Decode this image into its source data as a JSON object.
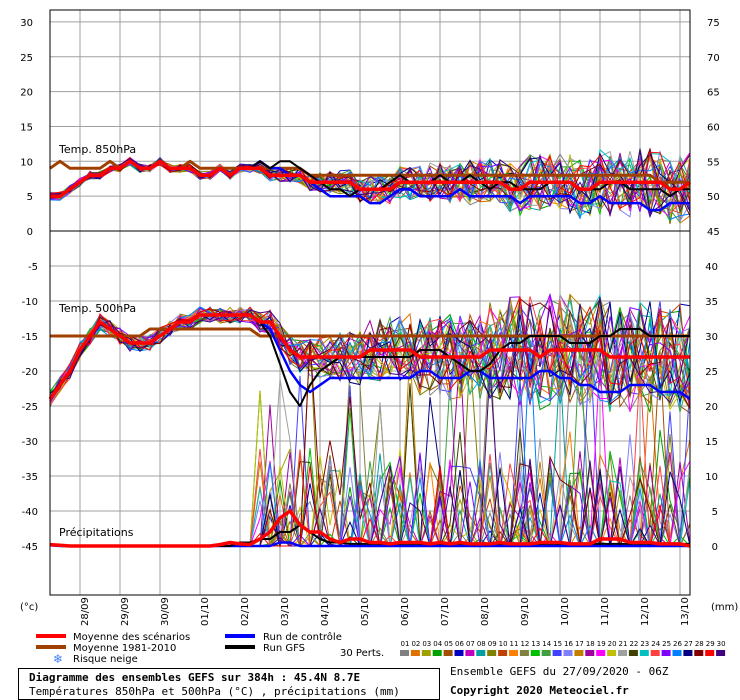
{
  "chart_data": {
    "type": "line",
    "left_unit": "(°c)",
    "right_unit": "(mm)",
    "left_ticks_top": [
      "30",
      "25",
      "20",
      "15",
      "10",
      "5",
      "0"
    ],
    "right_ticks_top": [
      "75",
      "70",
      "65",
      "60",
      "55",
      "50",
      "45"
    ],
    "left_ticks_bottom": [
      "-5",
      "-10",
      "-15",
      "-20",
      "-25",
      "-30",
      "-35",
      "-40",
      "-45"
    ],
    "right_ticks_bottom": [
      "40",
      "35",
      "30",
      "25",
      "20",
      "15",
      "10",
      "5",
      "0"
    ],
    "dates": [
      "28/09",
      "29/09",
      "30/09",
      "01/10",
      "02/10",
      "03/10",
      "04/10",
      "05/10",
      "06/10",
      "07/10",
      "08/10",
      "09/10",
      "10/10",
      "11/10",
      "12/10",
      "13/10"
    ],
    "panel_labels": {
      "t850": "Temp. 850hPa",
      "t500": "Temp. 500hPa",
      "precip": "Précipitations"
    },
    "t850": {
      "mean": [
        5,
        5,
        6,
        7,
        8,
        8,
        9,
        9,
        10,
        9,
        9,
        10,
        9,
        9,
        9,
        8,
        8,
        9,
        8,
        9,
        9,
        9,
        8,
        8,
        8,
        8,
        7,
        7,
        7,
        7,
        7,
        6,
        6,
        6,
        6,
        7,
        7,
        7,
        7,
        7,
        7,
        7,
        7,
        7,
        7,
        7,
        6,
        6,
        7,
        7,
        7,
        7,
        7,
        6,
        6,
        7,
        7,
        7,
        7,
        7,
        7,
        7,
        6,
        6,
        7
      ],
      "control": [
        5,
        5,
        6,
        7,
        8,
        8,
        9,
        9,
        10,
        9,
        9,
        10,
        9,
        9,
        9,
        8,
        8,
        9,
        8,
        9,
        9,
        10,
        9,
        9,
        8,
        8,
        7,
        6,
        5,
        5,
        5,
        5,
        4,
        4,
        5,
        6,
        6,
        5,
        5,
        5,
        5,
        6,
        5,
        5,
        5,
        5,
        5,
        4,
        5,
        5,
        5,
        5,
        5,
        4,
        4,
        5,
        4,
        4,
        4,
        4,
        3,
        3,
        4,
        4,
        4
      ],
      "gfs": [
        5,
        5,
        6,
        7,
        8,
        8,
        9,
        9,
        10,
        9,
        9,
        10,
        9,
        9,
        9,
        8,
        8,
        9,
        8,
        9,
        9,
        10,
        9,
        10,
        10,
        9,
        8,
        7,
        6,
        6,
        5,
        6,
        6,
        6,
        7,
        8,
        7,
        7,
        7,
        8,
        7,
        7,
        8,
        7,
        6,
        7,
        7,
        6,
        6,
        6,
        7,
        7,
        7,
        6,
        6,
        6,
        7,
        7,
        6,
        6,
        6,
        6,
        5,
        6,
        6
      ],
      "clim": [
        9,
        10,
        9,
        9,
        9,
        9,
        10,
        9,
        10,
        9,
        9,
        10,
        9,
        9,
        10,
        9,
        9,
        9,
        9,
        9,
        9,
        9,
        9,
        9,
        9,
        9,
        8,
        8,
        8,
        8,
        8,
        8,
        8,
        8,
        8,
        8,
        8,
        8,
        8,
        8,
        8,
        8,
        8,
        8,
        8,
        8,
        8,
        8,
        8,
        8,
        8,
        8,
        8,
        8,
        8,
        8,
        8,
        8,
        8,
        8,
        8,
        7,
        7,
        7,
        7
      ]
    },
    "t500": {
      "mean": [
        -24,
        -22,
        -20,
        -17,
        -15,
        -13,
        -14,
        -15,
        -16,
        -16,
        -16,
        -15,
        -14,
        -13,
        -13,
        -12,
        -12,
        -12,
        -12,
        -12,
        -12,
        -13,
        -13,
        -15,
        -17,
        -18,
        -18,
        -18,
        -18,
        -18,
        -18,
        -18,
        -17,
        -17,
        -17,
        -17,
        -17,
        -18,
        -18,
        -18,
        -18,
        -18,
        -18,
        -18,
        -17,
        -17,
        -17,
        -17,
        -17,
        -18,
        -17,
        -17,
        -17,
        -17,
        -17,
        -17,
        -18,
        -18,
        -18,
        -18,
        -18,
        -18,
        -18,
        -18,
        -18
      ],
      "control": [
        -24,
        -22,
        -20,
        -17,
        -15,
        -13,
        -14,
        -15,
        -16,
        -16,
        -16,
        -15,
        -14,
        -13,
        -13,
        -12,
        -12,
        -12,
        -12,
        -12,
        -12,
        -13,
        -14,
        -17,
        -20,
        -22,
        -23,
        -22,
        -21,
        -21,
        -21,
        -21,
        -21,
        -21,
        -21,
        -21,
        -21,
        -20,
        -20,
        -21,
        -21,
        -21,
        -20,
        -20,
        -21,
        -21,
        -21,
        -21,
        -21,
        -20,
        -20,
        -21,
        -21,
        -22,
        -22,
        -23,
        -23,
        -23,
        -22,
        -22,
        -22,
        -23,
        -23,
        -23,
        -24
      ],
      "gfs": [
        -24,
        -22,
        -20,
        -17,
        -15,
        -13,
        -14,
        -15,
        -16,
        -16,
        -16,
        -15,
        -14,
        -13,
        -13,
        -12,
        -12,
        -12,
        -12,
        -12,
        -12,
        -13,
        -15,
        -19,
        -23,
        -25,
        -22,
        -20,
        -19,
        -18,
        -18,
        -18,
        -18,
        -18,
        -18,
        -18,
        -18,
        -17,
        -17,
        -17,
        -18,
        -19,
        -20,
        -20,
        -19,
        -17,
        -16,
        -16,
        -15,
        -15,
        -15,
        -15,
        -16,
        -16,
        -16,
        -15,
        -15,
        -14,
        -14,
        -14,
        -15,
        -15,
        -15,
        -15,
        -15
      ],
      "clim": [
        -15,
        -15,
        -15,
        -15,
        -15,
        -15,
        -15,
        -15,
        -15,
        -15,
        -14,
        -14,
        -14,
        -14,
        -14,
        -14,
        -14,
        -14,
        -14,
        -14,
        -14,
        -15,
        -15,
        -15,
        -15,
        -15,
        -15,
        -15,
        -15,
        -15,
        -15,
        -15,
        -15,
        -15,
        -15,
        -15,
        -15,
        -15,
        -15,
        -15,
        -15,
        -15,
        -15,
        -15,
        -15,
        -15,
        -15,
        -15,
        -15,
        -15,
        -15,
        -15,
        -15,
        -15,
        -15,
        -15,
        -15,
        -15,
        -15,
        -15,
        -15,
        -15,
        -15,
        -15,
        -15
      ]
    },
    "precip": {
      "mean": [
        0.2,
        0.1,
        0,
        0,
        0,
        0,
        0,
        0,
        0,
        0,
        0,
        0,
        0,
        0,
        0,
        0,
        0,
        0.2,
        0.5,
        0.3,
        0.2,
        1,
        2,
        4,
        5,
        3,
        2,
        2,
        1,
        0.5,
        1,
        1,
        0.5,
        0.5,
        0.3,
        0.5,
        0.5,
        0.5,
        0.3,
        0.5,
        0.3,
        0.5,
        0.3,
        0.3,
        0.3,
        0.5,
        0.3,
        0.3,
        0.3,
        0.5,
        0.5,
        0.5,
        0.3,
        0.3,
        0.3,
        1,
        1,
        1,
        0.5,
        0.5,
        0.5,
        0.3,
        0.3,
        0.3,
        0
      ],
      "control": [
        0.1,
        0,
        0,
        0,
        0,
        0,
        0,
        0,
        0,
        0,
        0,
        0,
        0,
        0,
        0,
        0,
        0,
        0,
        0,
        0,
        0,
        0,
        0,
        0.5,
        0.5,
        0,
        0,
        0,
        0,
        0,
        0,
        0,
        0,
        0,
        0,
        0,
        0,
        0,
        0,
        0,
        0,
        0,
        0,
        0,
        0,
        0,
        0,
        0,
        0,
        0,
        0,
        0,
        0,
        0,
        0,
        0,
        0,
        0,
        0,
        0,
        0,
        0,
        0,
        0,
        0
      ],
      "gfs": [
        0.2,
        0,
        0,
        0,
        0,
        0,
        0,
        0,
        0,
        0,
        0,
        0,
        0,
        0,
        0,
        0,
        0,
        0,
        0,
        0.5,
        0.5,
        1,
        1,
        2,
        2,
        3,
        2,
        1,
        0.5,
        0.5,
        0.3,
        0.3,
        0.3,
        0.3,
        0.3,
        0.3,
        0.3,
        0.3,
        0.3,
        0.3,
        0.3,
        0.3,
        0.3,
        0.3,
        0.3,
        0.3,
        0.3,
        0.3,
        0.3,
        0.3,
        0.3,
        0.3,
        0.3,
        0.3,
        0.3,
        0.3,
        0.3,
        0.3,
        0.3,
        0.3,
        0.3,
        0.3,
        0.3,
        0.3,
        0.3
      ]
    },
    "members": [
      "01",
      "02",
      "03",
      "04",
      "05",
      "06",
      "07",
      "08",
      "09",
      "10",
      "11",
      "12",
      "13",
      "14",
      "15",
      "16",
      "17",
      "18",
      "19",
      "20",
      "21",
      "22",
      "23",
      "24",
      "25",
      "26",
      "27",
      "28",
      "29",
      "30"
    ],
    "member_colors": [
      "#808080",
      "#e07000",
      "#a0a000",
      "#00a000",
      "#a05000",
      "#0000c0",
      "#c000c0",
      "#00a0a0",
      "#808000",
      "#c04000",
      "#ff8000",
      "#808040",
      "#00c000",
      "#40a040",
      "#4040ff",
      "#8080ff",
      "#c08000",
      "#a000a0",
      "#ff00ff",
      "#c0c000",
      "#a0a0a0",
      "#404000",
      "#00c0c0",
      "#ff4040",
      "#8000ff",
      "#0080ff",
      "#000080",
      "#800000",
      "#ff0000",
      "#400080"
    ],
    "legend": {
      "mean": "Moyenne des scénarios",
      "clim": "Moyenne 1981-2010",
      "snow": "Risque neige",
      "control": "Run de contrôle",
      "gfs": "Run GFS",
      "perts": "30 Perts."
    },
    "colors": {
      "mean": "#ff0000",
      "clim": "#a04000",
      "control": "#0000ff",
      "gfs": "#000000",
      "grid": "#a0a0a0",
      "snow": "#4080ff"
    }
  },
  "footer": {
    "title": "Diagramme des ensembles GEFS sur 384h : 45.4N 8.7E",
    "subtitle": "Températures 850hPa et 500hPa (°C) , précipitations (mm)",
    "ensemble": "Ensemble GEFS du 27/09/2020 - 06Z",
    "copyright": "Copyright 2020 Meteociel.fr"
  }
}
